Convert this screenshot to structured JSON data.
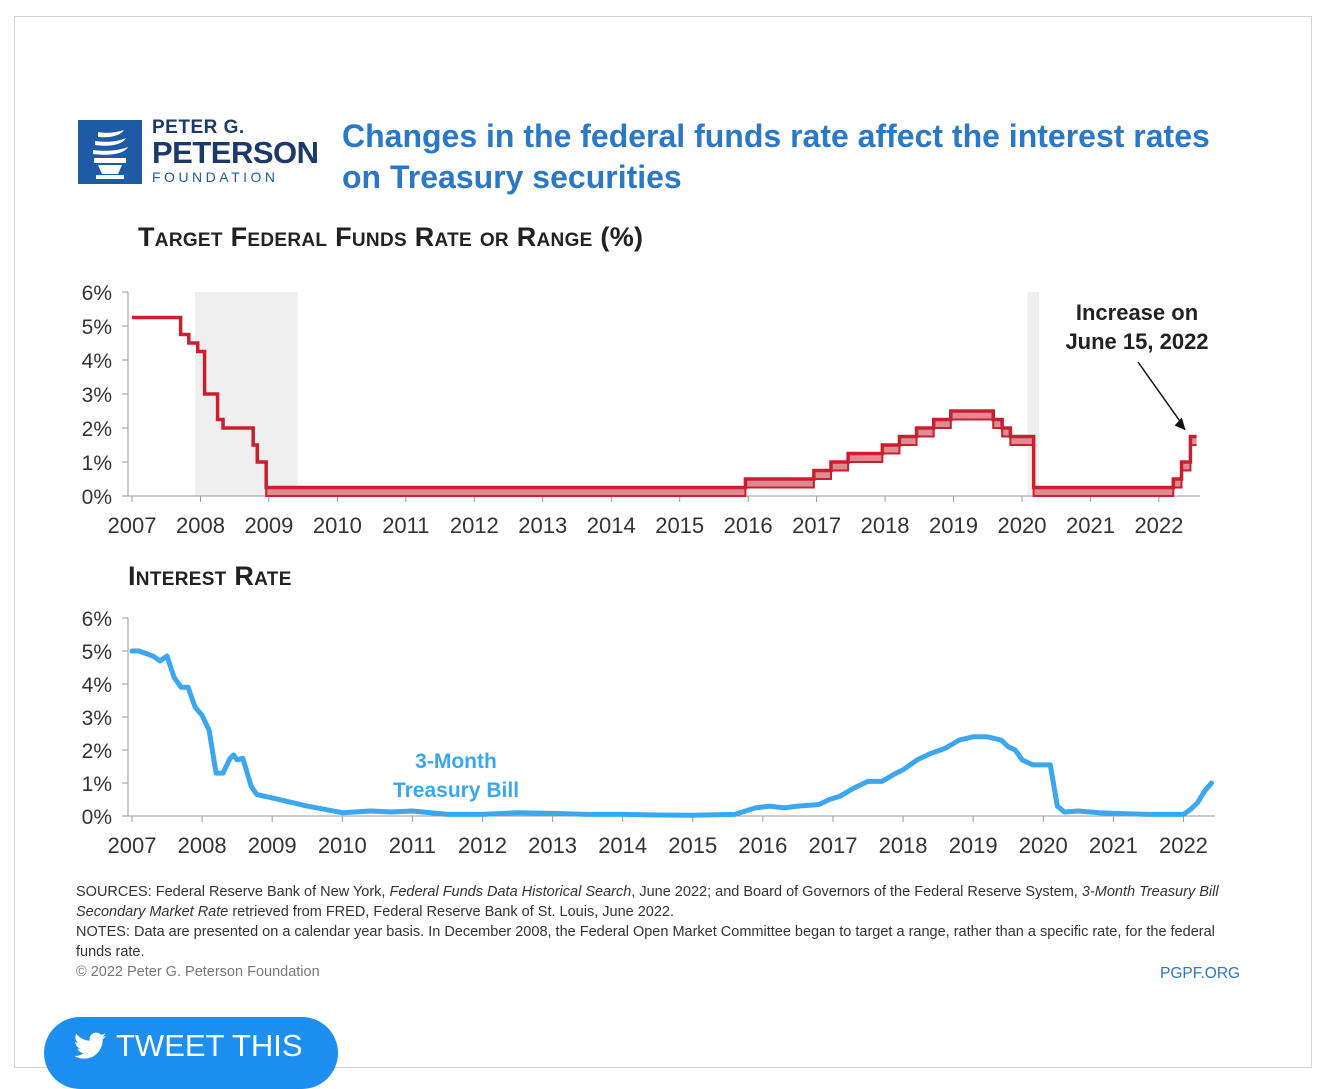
{
  "logo": {
    "line1": "PETER G.",
    "line2": "PETERSON",
    "line3": "FOUNDATION"
  },
  "title_line1": "Changes in the federal funds rate affect the interest rates",
  "title_line2": "on Treasury securities",
  "colors": {
    "fed_funds": "#c8202f",
    "fed_funds_fill": "#e08a92",
    "tbill": "#3aa7f0",
    "recession": "#efefef",
    "title": "#2a78c6",
    "button": "#1d8ff0"
  },
  "chart_data": [
    {
      "type": "line",
      "title": "Target Federal Funds Rate or Range (%)",
      "xlabel": "",
      "ylabel": "",
      "x_ticks": [
        "2007",
        "2008",
        "2009",
        "2010",
        "2011",
        "2012",
        "2013",
        "2014",
        "2015",
        "2016",
        "2017",
        "2018",
        "2019",
        "2020",
        "2021",
        "2022"
      ],
      "y_ticks": [
        "0%",
        "1%",
        "2%",
        "3%",
        "4%",
        "5%",
        "6%"
      ],
      "xlim": [
        2007,
        2022.6
      ],
      "ylim": [
        0,
        6
      ],
      "recession_shading": [
        [
          2007.92,
          2009.42
        ],
        [
          2020.08,
          2020.25
        ]
      ],
      "annotation": {
        "line1": "Increase on",
        "line2": "June 15, 2022",
        "x": 2022.45,
        "y": 1.75
      },
      "series": [
        {
          "name": "",
          "note": "step series; from Dec 2008 shown as a range [lower, upper]",
          "points": [
            [
              2007.0,
              5.25,
              5.25
            ],
            [
              2007.71,
              4.75,
              4.75
            ],
            [
              2007.83,
              4.5,
              4.5
            ],
            [
              2007.96,
              4.25,
              4.25
            ],
            [
              2008.06,
              3.0,
              3.0
            ],
            [
              2008.25,
              2.25,
              2.25
            ],
            [
              2008.33,
              2.0,
              2.0
            ],
            [
              2008.77,
              1.5,
              1.5
            ],
            [
              2008.83,
              1.0,
              1.0
            ],
            [
              2008.96,
              0.0,
              0.25
            ],
            [
              2015.96,
              0.25,
              0.5
            ],
            [
              2016.96,
              0.5,
              0.75
            ],
            [
              2017.21,
              0.75,
              1.0
            ],
            [
              2017.46,
              1.0,
              1.25
            ],
            [
              2017.96,
              1.25,
              1.5
            ],
            [
              2018.21,
              1.5,
              1.75
            ],
            [
              2018.46,
              1.75,
              2.0
            ],
            [
              2018.71,
              2.0,
              2.25
            ],
            [
              2018.96,
              2.25,
              2.5
            ],
            [
              2019.58,
              2.0,
              2.25
            ],
            [
              2019.71,
              1.75,
              2.0
            ],
            [
              2019.83,
              1.5,
              1.75
            ],
            [
              2020.17,
              0.0,
              0.25
            ],
            [
              2022.21,
              0.25,
              0.5
            ],
            [
              2022.33,
              0.75,
              1.0
            ],
            [
              2022.46,
              1.5,
              1.75
            ],
            [
              2022.55,
              1.5,
              1.75
            ]
          ]
        }
      ]
    },
    {
      "type": "line",
      "title": "Interest Rate",
      "xlabel": "",
      "ylabel": "",
      "x_ticks": [
        "2007",
        "2008",
        "2009",
        "2010",
        "2011",
        "2012",
        "2013",
        "2014",
        "2015",
        "2016",
        "2017",
        "2018",
        "2019",
        "2020",
        "2021",
        "2022"
      ],
      "y_ticks": [
        "0%",
        "1%",
        "2%",
        "3%",
        "4%",
        "5%",
        "6%"
      ],
      "xlim": [
        2007,
        2022.45
      ],
      "ylim": [
        0,
        6
      ],
      "series": [
        {
          "name": "3-Month Treasury Bill",
          "label_line1": "3-Month",
          "label_line2": "Treasury Bill",
          "points": [
            [
              2007.0,
              5.0
            ],
            [
              2007.1,
              5.0
            ],
            [
              2007.3,
              4.85
            ],
            [
              2007.4,
              4.7
            ],
            [
              2007.5,
              4.85
            ],
            [
              2007.6,
              4.2
            ],
            [
              2007.7,
              3.9
            ],
            [
              2007.8,
              3.9
            ],
            [
              2007.9,
              3.3
            ],
            [
              2008.0,
              3.05
            ],
            [
              2008.1,
              2.6
            ],
            [
              2008.2,
              1.3
            ],
            [
              2008.3,
              1.3
            ],
            [
              2008.4,
              1.75
            ],
            [
              2008.45,
              1.85
            ],
            [
              2008.5,
              1.7
            ],
            [
              2008.58,
              1.75
            ],
            [
              2008.7,
              0.9
            ],
            [
              2008.78,
              0.65
            ],
            [
              2009.0,
              0.55
            ],
            [
              2009.5,
              0.3
            ],
            [
              2010.0,
              0.1
            ],
            [
              2010.4,
              0.15
            ],
            [
              2010.7,
              0.12
            ],
            [
              2011.0,
              0.15
            ],
            [
              2011.5,
              0.05
            ],
            [
              2012.0,
              0.05
            ],
            [
              2012.5,
              0.1
            ],
            [
              2013.0,
              0.08
            ],
            [
              2013.5,
              0.05
            ],
            [
              2014.0,
              0.05
            ],
            [
              2014.5,
              0.03
            ],
            [
              2015.0,
              0.02
            ],
            [
              2015.6,
              0.05
            ],
            [
              2015.9,
              0.25
            ],
            [
              2016.1,
              0.3
            ],
            [
              2016.3,
              0.25
            ],
            [
              2016.5,
              0.3
            ],
            [
              2016.8,
              0.35
            ],
            [
              2016.95,
              0.5
            ],
            [
              2017.1,
              0.6
            ],
            [
              2017.3,
              0.85
            ],
            [
              2017.5,
              1.05
            ],
            [
              2017.7,
              1.05
            ],
            [
              2017.9,
              1.3
            ],
            [
              2018.0,
              1.4
            ],
            [
              2018.2,
              1.7
            ],
            [
              2018.4,
              1.9
            ],
            [
              2018.6,
              2.05
            ],
            [
              2018.8,
              2.3
            ],
            [
              2019.0,
              2.4
            ],
            [
              2019.2,
              2.4
            ],
            [
              2019.4,
              2.3
            ],
            [
              2019.5,
              2.1
            ],
            [
              2019.6,
              2.0
            ],
            [
              2019.7,
              1.7
            ],
            [
              2019.85,
              1.55
            ],
            [
              2020.1,
              1.55
            ],
            [
              2020.2,
              0.3
            ],
            [
              2020.3,
              0.12
            ],
            [
              2020.5,
              0.15
            ],
            [
              2020.8,
              0.1
            ],
            [
              2021.0,
              0.08
            ],
            [
              2021.5,
              0.05
            ],
            [
              2022.0,
              0.05
            ],
            [
              2022.1,
              0.2
            ],
            [
              2022.2,
              0.4
            ],
            [
              2022.3,
              0.75
            ],
            [
              2022.4,
              1.0
            ]
          ]
        }
      ]
    }
  ],
  "notes": {
    "sources_prefix": "SOURCES: Federal Reserve Bank of New York, ",
    "sources_em1": "Federal Funds Data Historical Search",
    "sources_mid": ", June 2022; and Board of Governors of the Federal Reserve System, ",
    "sources_em2": "3-Month Treasury Bill Secondary Market Rate",
    "sources_suffix": " retrieved from FRED, Federal Reserve Bank of St. Louis, June 2022.",
    "notes_text": "NOTES: Data are presented on a calendar year basis. In December 2008, the Federal Open Market Committee began to target a range, rather than a specific rate, for the federal funds rate."
  },
  "copyright": "© 2022 Peter G. Peterson Foundation",
  "site": "PGPF.ORG",
  "tweet_button": {
    "label": "TWEET THIS",
    "icon": "twitter-bird-icon"
  }
}
